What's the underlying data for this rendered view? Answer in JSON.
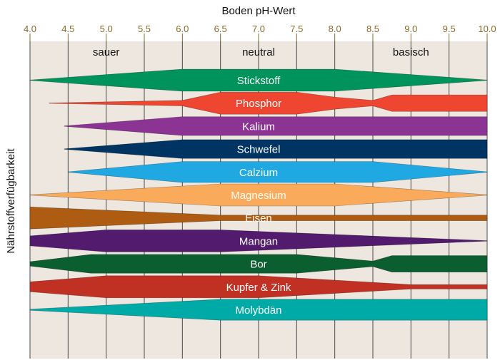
{
  "chart_data": {
    "type": "area",
    "title": "",
    "xlabel": "Boden pH-Wert",
    "ylabel": "Nährstoffverfügbarkeit",
    "xlim": [
      4.0,
      10.0
    ],
    "xticks": [
      "4.0",
      "4.5",
      "5.0",
      "5.5",
      "6.0",
      "6.5",
      "7.0",
      "7.5",
      "8.0",
      "8.5",
      "9.0",
      "9.5",
      "10.0"
    ],
    "zones": [
      {
        "label": "sauer",
        "from": 4.0,
        "to": 6.0
      },
      {
        "label": "neutral",
        "from": 6.0,
        "to": 8.0
      },
      {
        "label": "basisch",
        "from": 8.0,
        "to": 10.0
      }
    ],
    "colors": {
      "background": "#ede7e0",
      "grid": "#4a4a4a",
      "ticks": "#8a6a2a"
    },
    "max_width": 1.0,
    "series": [
      {
        "name": "Stickstoff",
        "color": "#00935c",
        "ph": [
          4.0,
          6.0,
          8.0,
          10.0
        ],
        "width": [
          0.02,
          1.0,
          1.0,
          0.02
        ]
      },
      {
        "name": "Phosphor",
        "color": "#ee4630",
        "ph": [
          4.25,
          6.0,
          6.5,
          7.5,
          8.0,
          8.5,
          8.75,
          10.0
        ],
        "width": [
          0.02,
          0.25,
          1.0,
          1.0,
          0.55,
          0.25,
          0.75,
          0.75
        ]
      },
      {
        "name": "Kalium",
        "color": "#8b3494",
        "ph": [
          4.45,
          6.0,
          10.0
        ],
        "width": [
          0.02,
          0.85,
          0.85
        ]
      },
      {
        "name": "Schwefel",
        "color": "#003462",
        "ph": [
          4.45,
          6.0,
          10.0
        ],
        "width": [
          0.02,
          0.85,
          0.85
        ]
      },
      {
        "name": "Calzium",
        "color": "#1fa8e2",
        "ph": [
          4.5,
          6.0,
          8.5,
          10.0
        ],
        "width": [
          0.02,
          0.95,
          0.95,
          0.02
        ]
      },
      {
        "name": "Magnesium",
        "color": "#f9ab5b",
        "ph": [
          4.0,
          6.5,
          8.0,
          10.0
        ],
        "width": [
          0.02,
          1.0,
          1.0,
          0.02
        ]
      },
      {
        "name": "Eisen",
        "color": "#ad5c12",
        "ph": [
          4.0,
          6.5,
          10.0
        ],
        "width": [
          1.0,
          0.25,
          0.25
        ]
      },
      {
        "name": "Mangan",
        "color": "#531b6d",
        "ph": [
          4.0,
          5.0,
          6.5,
          10.0
        ],
        "width": [
          0.45,
          1.0,
          1.0,
          0.02
        ]
      },
      {
        "name": "Bor",
        "color": "#0a5e2f",
        "ph": [
          4.0,
          4.8,
          7.5,
          8.5,
          8.75,
          10.0
        ],
        "width": [
          0.2,
          0.85,
          0.85,
          0.25,
          0.75,
          0.75
        ]
      },
      {
        "name": "Kupfer & Zink",
        "color": "#c13123",
        "ph": [
          4.0,
          5.0,
          7.0,
          9.0,
          10.0
        ],
        "width": [
          0.45,
          1.0,
          1.0,
          0.2,
          0.2
        ]
      },
      {
        "name": "Molybdän",
        "color": "#00aaa7",
        "ph": [
          4.0,
          6.5,
          10.0
        ],
        "width": [
          0.05,
          0.95,
          0.95
        ]
      }
    ]
  }
}
